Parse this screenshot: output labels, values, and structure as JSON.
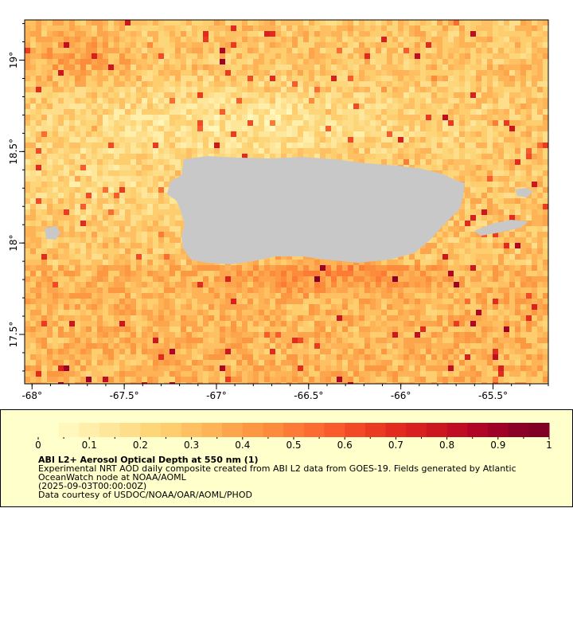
{
  "map": {
    "lon_ticks": [
      {
        "value": -68,
        "label": "-68°"
      },
      {
        "value": -67.5,
        "label": "-67.5°"
      },
      {
        "value": -67,
        "label": "-67°"
      },
      {
        "value": -66.5,
        "label": "-66.5°"
      },
      {
        "value": -66,
        "label": "-66°"
      },
      {
        "value": -65.5,
        "label": "-65.5°"
      }
    ],
    "lat_ticks": [
      {
        "value": 19,
        "label": "19°"
      },
      {
        "value": 18.5,
        "label": "18.5°"
      },
      {
        "value": 18,
        "label": "18°"
      },
      {
        "value": 17.5,
        "label": "17.5°"
      }
    ],
    "lon_range": [
      -68.04,
      -65.2
    ],
    "lat_range": [
      17.23,
      19.22
    ],
    "land_color": "#c8c8c8",
    "missing_color": "#888888"
  },
  "colorbar": {
    "range": [
      0,
      1
    ],
    "tick_labels": [
      "0",
      "0.1",
      "0.2",
      "0.3",
      "0.4",
      "0.5",
      "0.6",
      "0.7",
      "0.8",
      "0.9",
      "1"
    ],
    "colors": [
      "#ffffcc",
      "#fff7bc",
      "#ffefab",
      "#fee79b",
      "#fede8a",
      "#fed67a",
      "#fecd6d",
      "#fec062",
      "#feb357",
      "#fda54c",
      "#fd9842",
      "#fd8b3c",
      "#fc7b36",
      "#fc6b31",
      "#f95b2c",
      "#f24a27",
      "#eb3a22",
      "#e22a1e",
      "#d7201f",
      "#cc1620",
      "#bf0e24",
      "#b00526",
      "#9f0026",
      "#8b0026",
      "#800026"
    ]
  },
  "legend": {
    "title": "ABI L2+ Aerosol Optical Depth at 550 nm (1)",
    "description_line1": "Experimental NRT AOD daily composite created from ABI L2 data from GOES-19. Fields generated by Atlantic",
    "description_line2": "OceanWatch node at NOAA/AOML",
    "date": "(2025-09-03T00:00:00Z)",
    "credit": "Data courtesy of USDOC/NOAA/OAR/AOML/PHOD"
  }
}
